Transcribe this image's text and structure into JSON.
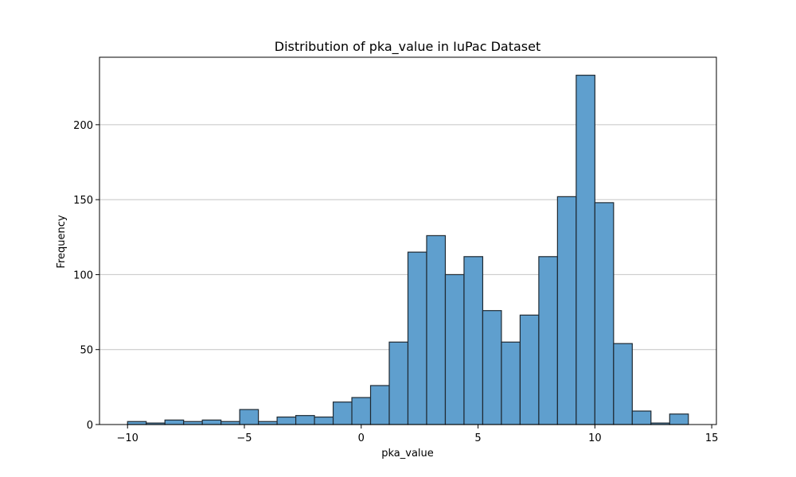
{
  "chart_data": {
    "type": "bar",
    "title": "Distribution of pka_value in IuPac Dataset",
    "xlabel": "pka_value",
    "ylabel": "Frequency",
    "xlim": [
      -11.2,
      15.2
    ],
    "ylim": [
      0,
      245
    ],
    "xticks": [
      -10,
      -5,
      0,
      5,
      10,
      15
    ],
    "xtick_labels": [
      "−10",
      "−5",
      "0",
      "5",
      "10",
      "15"
    ],
    "yticks": [
      0,
      50,
      100,
      150,
      200
    ],
    "ytick_labels": [
      "0",
      "50",
      "100",
      "150",
      "200"
    ],
    "grid": "horizontal",
    "bin_edges": [
      -10.0,
      -9.2,
      -8.4,
      -7.6,
      -6.8,
      -6.0,
      -5.2,
      -4.4,
      -3.6,
      -2.8,
      -2.0,
      -1.2,
      -0.4,
      0.4,
      1.2,
      2.0,
      2.8,
      3.6,
      4.4,
      5.2,
      6.0,
      6.8,
      7.6,
      8.4,
      9.2,
      10.0,
      10.8,
      11.6,
      12.4,
      13.2,
      14.0
    ],
    "values": [
      2,
      1,
      3,
      2,
      3,
      2,
      10,
      2,
      5,
      6,
      5,
      15,
      18,
      26,
      55,
      115,
      126,
      100,
      112,
      76,
      55,
      73,
      112,
      152,
      233,
      148,
      54,
      9,
      1,
      7
    ],
    "colors": {
      "bar_fill": "#5f9fce",
      "bar_edge": "#1f2a33",
      "grid": "#c4c4c4"
    }
  }
}
